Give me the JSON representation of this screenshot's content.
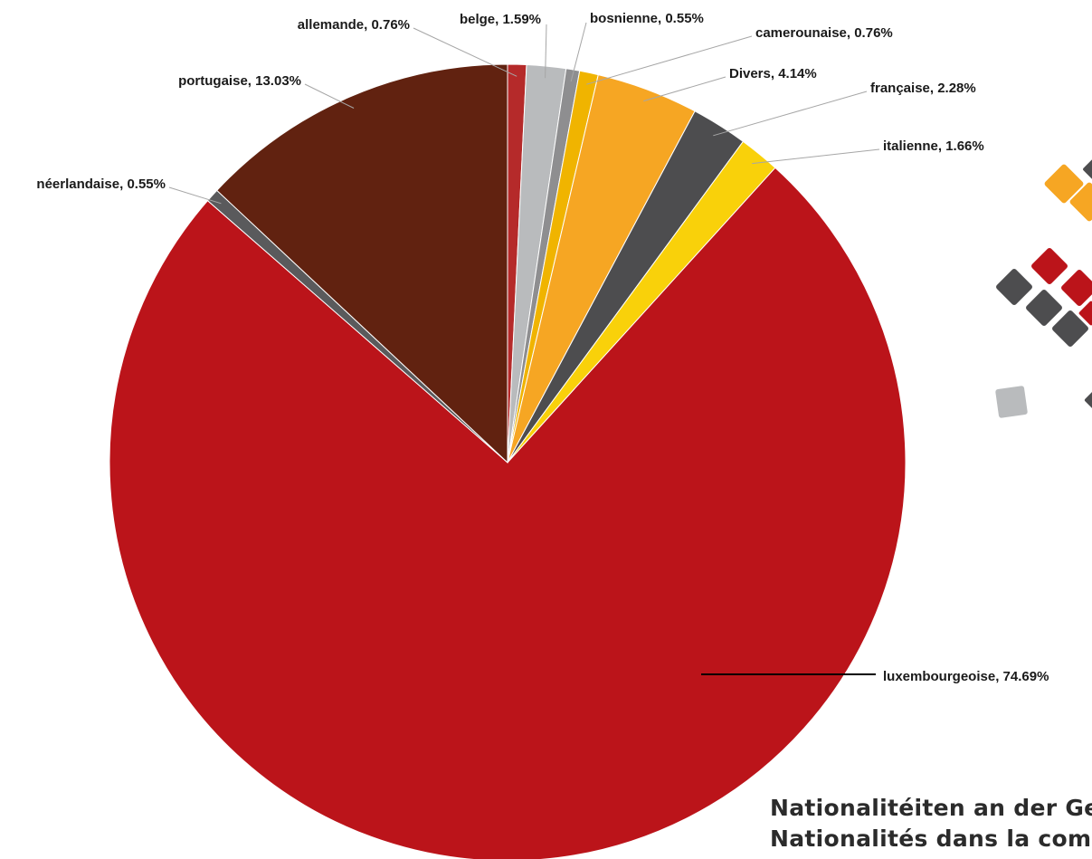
{
  "chart_data": {
    "type": "pie",
    "title": [
      "Nationalitéiten an der Ge",
      "Nationalités dans la com"
    ],
    "slices": [
      {
        "label": "allemande",
        "value": 0.76,
        "color": "#b52a2a",
        "text": "allemande, 0.76%"
      },
      {
        "label": "belge",
        "value": 1.59,
        "color": "#b9bbbd",
        "text": "belge, 1.59%"
      },
      {
        "label": "bosnienne",
        "value": 0.55,
        "color": "#8e8e90",
        "text": "bosnienne, 0.55%"
      },
      {
        "label": "camerounaise",
        "value": 0.76,
        "color": "#f0b400",
        "text": "camerounaise, 0.76%"
      },
      {
        "label": "Divers",
        "value": 4.14,
        "color": "#f6a623",
        "text": "Divers, 4.14%"
      },
      {
        "label": "française",
        "value": 2.28,
        "color": "#4d4d4f",
        "text": "française, 2.28%"
      },
      {
        "label": "italienne",
        "value": 1.66,
        "color": "#f9d10a",
        "text": "italienne, 1.66%"
      },
      {
        "label": "luxembourgeoise",
        "value": 74.69,
        "color": "#bb141a",
        "text": "luxembourgeoise, 74.69%"
      },
      {
        "label": "néerlandaise",
        "value": 0.55,
        "color": "#5a5a5c",
        "text": "néerlandaise, 0.55%"
      },
      {
        "label": "portugaise",
        "value": 13.03,
        "color": "#612210",
        "text": "portugaise, 13.03%"
      }
    ],
    "decoration_colors": [
      "#f6a623",
      "#bb141a",
      "#4d4d4f",
      "#b9bbbd"
    ]
  }
}
